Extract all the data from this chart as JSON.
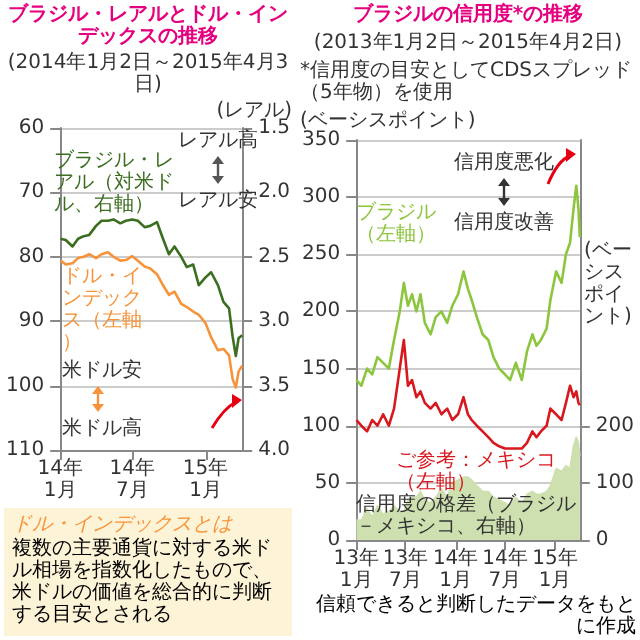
{
  "chart_data": [
    {
      "type": "line",
      "title": "ブラジル・レアルとドル・インデックスの推移",
      "subtitle": "(2014年1月2日～2015年4月3日)",
      "y2label": "(レアル)",
      "xlim": [
        "2014-01-01",
        "2015-04-03"
      ],
      "xticks": [
        {
          "value": "2014-01-01",
          "label": "14年1月"
        },
        {
          "value": "2014-07-01",
          "label": "14年7月"
        },
        {
          "value": "2015-01-01",
          "label": "15年1月"
        }
      ],
      "ylim": [
        110,
        60
      ],
      "yticks": [
        60,
        70,
        80,
        90,
        100,
        110
      ],
      "y2lim": [
        4.0,
        1.5
      ],
      "y2ticks": [
        1.5,
        {
          "value": 2.0,
          "label": "2.0"
        },
        2.5,
        {
          "value": 3.0,
          "label": "3.0"
        },
        3.5,
        {
          "value": 4.0,
          "label": "4.0"
        }
      ],
      "grid": "y",
      "legend": false,
      "marker": "none",
      "line_style": "solid",
      "x": [
        "2014-01-02",
        "2014-01-15",
        "2014-02-01",
        "2014-02-15",
        "2014-03-01",
        "2014-03-15",
        "2014-04-01",
        "2014-04-15",
        "2014-05-01",
        "2014-05-15",
        "2014-06-01",
        "2014-06-15",
        "2014-07-01",
        "2014-07-15",
        "2014-08-01",
        "2014-08-15",
        "2014-09-01",
        "2014-09-15",
        "2014-10-01",
        "2014-10-15",
        "2014-11-01",
        "2014-11-15",
        "2014-12-01",
        "2014-12-15",
        "2015-01-01",
        "2015-01-15",
        "2015-02-01",
        "2015-02-15",
        "2015-03-01",
        "2015-03-10",
        "2015-03-18",
        "2015-03-25",
        "2015-04-03"
      ],
      "series": [
        {
          "name": "ブラジル・レアル（対米ドル、右軸）",
          "color": "#3b6e1f",
          "axis": "y2",
          "values": [
            2.36,
            2.37,
            2.42,
            2.36,
            2.34,
            2.33,
            2.26,
            2.22,
            2.22,
            2.21,
            2.24,
            2.22,
            2.21,
            2.22,
            2.27,
            2.26,
            2.23,
            2.35,
            2.48,
            2.42,
            2.5,
            2.58,
            2.56,
            2.72,
            2.66,
            2.62,
            2.72,
            2.85,
            2.9,
            3.12,
            3.27,
            3.13,
            3.11
          ]
        },
        {
          "name": "ドル・インデックス（左軸）",
          "color": "#f7943b",
          "values": [
            80.6,
            81.2,
            81.0,
            80.2,
            80.0,
            79.6,
            80.2,
            79.6,
            79.3,
            80.0,
            80.6,
            80.5,
            79.9,
            80.6,
            81.5,
            81.8,
            82.7,
            84.3,
            85.9,
            85.4,
            87.3,
            87.8,
            88.5,
            89.0,
            90.3,
            92.5,
            94.5,
            94.3,
            95.3,
            99.0,
            100.3,
            97.8,
            96.9
          ]
        }
      ],
      "annotations": [
        "レアル高",
        "レアル安",
        "米ドル安",
        "米ドル高",
        "ドル・インデックスとは",
        "複数の主要通貨に対する米ドル相場を指数化したもので、米ドルの価値を総合的に判断する目安とされる"
      ]
    },
    {
      "type": "line",
      "title": "ブラジルの信用度*の推移",
      "subtitle": "(2013年1月2日～2015年4月2日)",
      "ylabel": "(ベーシスポイント)",
      "y2label": "(ベーシスポイント)",
      "xlim": [
        "2013-01-01",
        "2015-04-02"
      ],
      "xticks": [
        {
          "value": "2013-01-01",
          "label": "13年1月"
        },
        {
          "value": "2013-07-01",
          "label": "13年7月"
        },
        {
          "value": "2014-01-01",
          "label": "14年1月"
        },
        {
          "value": "2014-07-01",
          "label": "14年7月"
        },
        {
          "value": "2015-01-01",
          "label": "15年1月"
        }
      ],
      "ylim": [
        0,
        350
      ],
      "yticks": [
        0,
        50,
        100,
        150,
        200,
        250,
        300,
        350
      ],
      "y2lim": [
        0,
        700
      ],
      "y2ticks": [
        0,
        100,
        200
      ],
      "grid": "y",
      "legend": false,
      "marker": "none",
      "line_style": "solid",
      "x": [
        "2013-01-02",
        "2013-01-20",
        "2013-02-10",
        "2013-03-01",
        "2013-03-20",
        "2013-04-10",
        "2013-05-01",
        "2013-05-20",
        "2013-06-10",
        "2013-06-25",
        "2013-07-10",
        "2013-07-25",
        "2013-08-10",
        "2013-08-25",
        "2013-09-10",
        "2013-10-01",
        "2013-10-20",
        "2013-11-10",
        "2013-12-01",
        "2013-12-20",
        "2014-01-10",
        "2014-01-30",
        "2014-02-15",
        "2014-03-01",
        "2014-03-20",
        "2014-04-10",
        "2014-05-01",
        "2014-05-20",
        "2014-06-10",
        "2014-07-01",
        "2014-07-20",
        "2014-08-10",
        "2014-09-01",
        "2014-09-20",
        "2014-10-10",
        "2014-10-25",
        "2014-11-10",
        "2014-12-01",
        "2014-12-15",
        "2015-01-05",
        "2015-01-25",
        "2015-02-10",
        "2015-02-25",
        "2015-03-10",
        "2015-03-20",
        "2015-03-28",
        "2015-04-02"
      ],
      "series": [
        {
          "name": "信用度の格差（ブラジル－メキシコ、右軸）",
          "type": "area",
          "axis": "y2",
          "color": "#cfe0b0",
          "values": [
            35,
            35,
            55,
            40,
            60,
            45,
            50,
            60,
            50,
            50,
            70,
            75,
            75,
            85,
            70,
            65,
            75,
            90,
            75,
            100,
            105,
            110,
            110,
            105,
            95,
            85,
            85,
            75,
            70,
            65,
            60,
            75,
            62,
            80,
            85,
            80,
            80,
            85,
            95,
            125,
            120,
            130,
            125,
            165,
            180,
            170,
            147
          ]
        },
        {
          "name": "ブラジル（左軸）",
          "color": "#8cc63f",
          "values": [
            140,
            135,
            150,
            145,
            160,
            155,
            150,
            175,
            200,
            225,
            205,
            215,
            200,
            215,
            190,
            180,
            195,
            200,
            190,
            205,
            215,
            235,
            220,
            210,
            195,
            180,
            175,
            160,
            150,
            145,
            140,
            155,
            140,
            165,
            180,
            170,
            175,
            185,
            210,
            235,
            225,
            250,
            260,
            290,
            310,
            290,
            265
          ]
        },
        {
          "name": "ご参考：メキシコ（左軸）",
          "color": "#d7191f",
          "values": [
            105,
            100,
            95,
            105,
            100,
            110,
            100,
            115,
            150,
            175,
            135,
            140,
            125,
            130,
            120,
            115,
            120,
            110,
            115,
            105,
            110,
            125,
            110,
            105,
            100,
            95,
            90,
            85,
            82,
            80,
            80,
            80,
            80,
            85,
            95,
            90,
            95,
            100,
            115,
            110,
            105,
            120,
            135,
            125,
            130,
            120,
            118
          ]
        }
      ],
      "annotations": [
        "*信用度の目安としてCDSスプレッド（5年物）を使用",
        "信用度悪化",
        "信用度改善",
        "信頼できると判断したデータをもとに作成"
      ]
    }
  ]
}
